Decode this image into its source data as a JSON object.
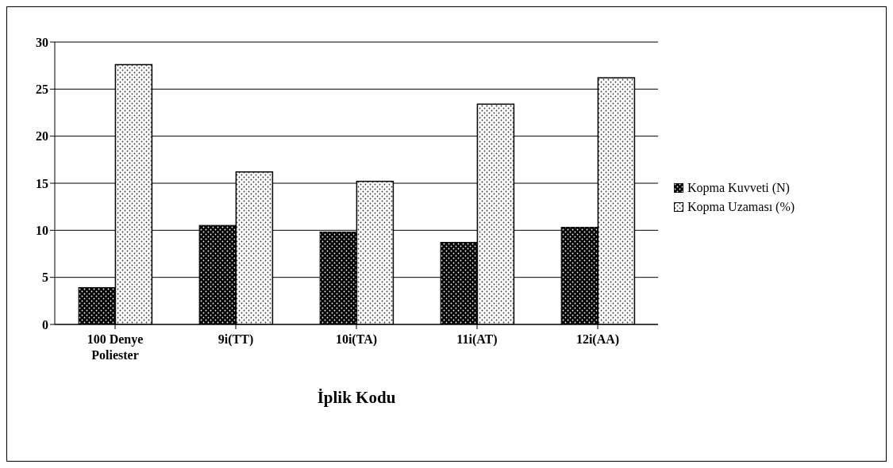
{
  "chart_data": {
    "type": "bar",
    "xlabel": "İplik Kodu",
    "categories": [
      "100 Denye Poliester",
      "9i(TT)",
      "10i(TA)",
      "11i(AT)",
      "12i(AA)"
    ],
    "series": [
      {
        "name": "Kopma Kuvveti (N)",
        "color": "#000000",
        "values": [
          3.9,
          10.5,
          9.8,
          8.7,
          10.3
        ]
      },
      {
        "name": "Kopma Uzaması (%)",
        "color": "#ffffff",
        "values": [
          27.6,
          16.2,
          15.2,
          23.4,
          26.2
        ]
      }
    ],
    "ylim": [
      0,
      30
    ],
    "yticks": [
      0,
      5,
      10,
      15,
      20,
      25,
      30
    ],
    "grid": "y",
    "legend": "right"
  }
}
